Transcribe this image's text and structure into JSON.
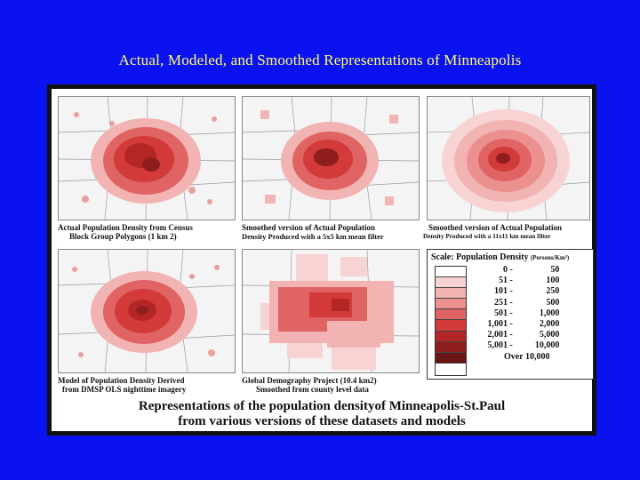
{
  "slide": {
    "title": "Actual, Modeled, and Smoothed Representations of Minneapolis"
  },
  "panels": [
    {
      "id": "actual",
      "caption_line1": "Actual Population Density from Census",
      "caption_line2": "Block Group Polygons (1 km 2)"
    },
    {
      "id": "smoothed-5x5",
      "caption_line1": "Smoothed version of Actual Population",
      "caption_line2": "Density Produced with a 5x5 km mean filter"
    },
    {
      "id": "smoothed-11x11",
      "caption_line1": "Smoothed version of Actual Population",
      "caption_line2": "Density Produced with a 11x11 km mean filter"
    },
    {
      "id": "dmsp-model",
      "caption_line1": "Model of Population Density Derived",
      "caption_line2": "from DMSP OLS nighttime imagery"
    },
    {
      "id": "gdp",
      "caption_line1": "Global Demography Project (10.4 km2)",
      "caption_line2": "Smoothed from county level data"
    }
  ],
  "legend": {
    "title": "Scale: Population Density",
    "unit": "(Persons/Km²)",
    "classes": [
      {
        "from": "0",
        "to": "50",
        "color": "#ffffff"
      },
      {
        "from": "51",
        "to": "100",
        "color": "#f7d3d3"
      },
      {
        "from": "101",
        "to": "250",
        "color": "#f2b3b3"
      },
      {
        "from": "251",
        "to": "500",
        "color": "#eb8f8f"
      },
      {
        "from": "501",
        "to": "1,000",
        "color": "#e06464"
      },
      {
        "from": "1,001",
        "to": "2,000",
        "color": "#d33a3a"
      },
      {
        "from": "2,001",
        "to": "5,000",
        "color": "#b42626"
      },
      {
        "from": "5,001",
        "to": "10,000",
        "color": "#8e1d1d"
      },
      {
        "from": "Over 10,000",
        "to": "",
        "color": "#6a1515"
      }
    ]
  },
  "footer": {
    "line1": "Representations of the population densityof Minneapolis-St.Paul",
    "line2": "from various versions of these datasets and models"
  },
  "colors": {
    "background": "#0a12f0",
    "title": "#ffff66"
  }
}
